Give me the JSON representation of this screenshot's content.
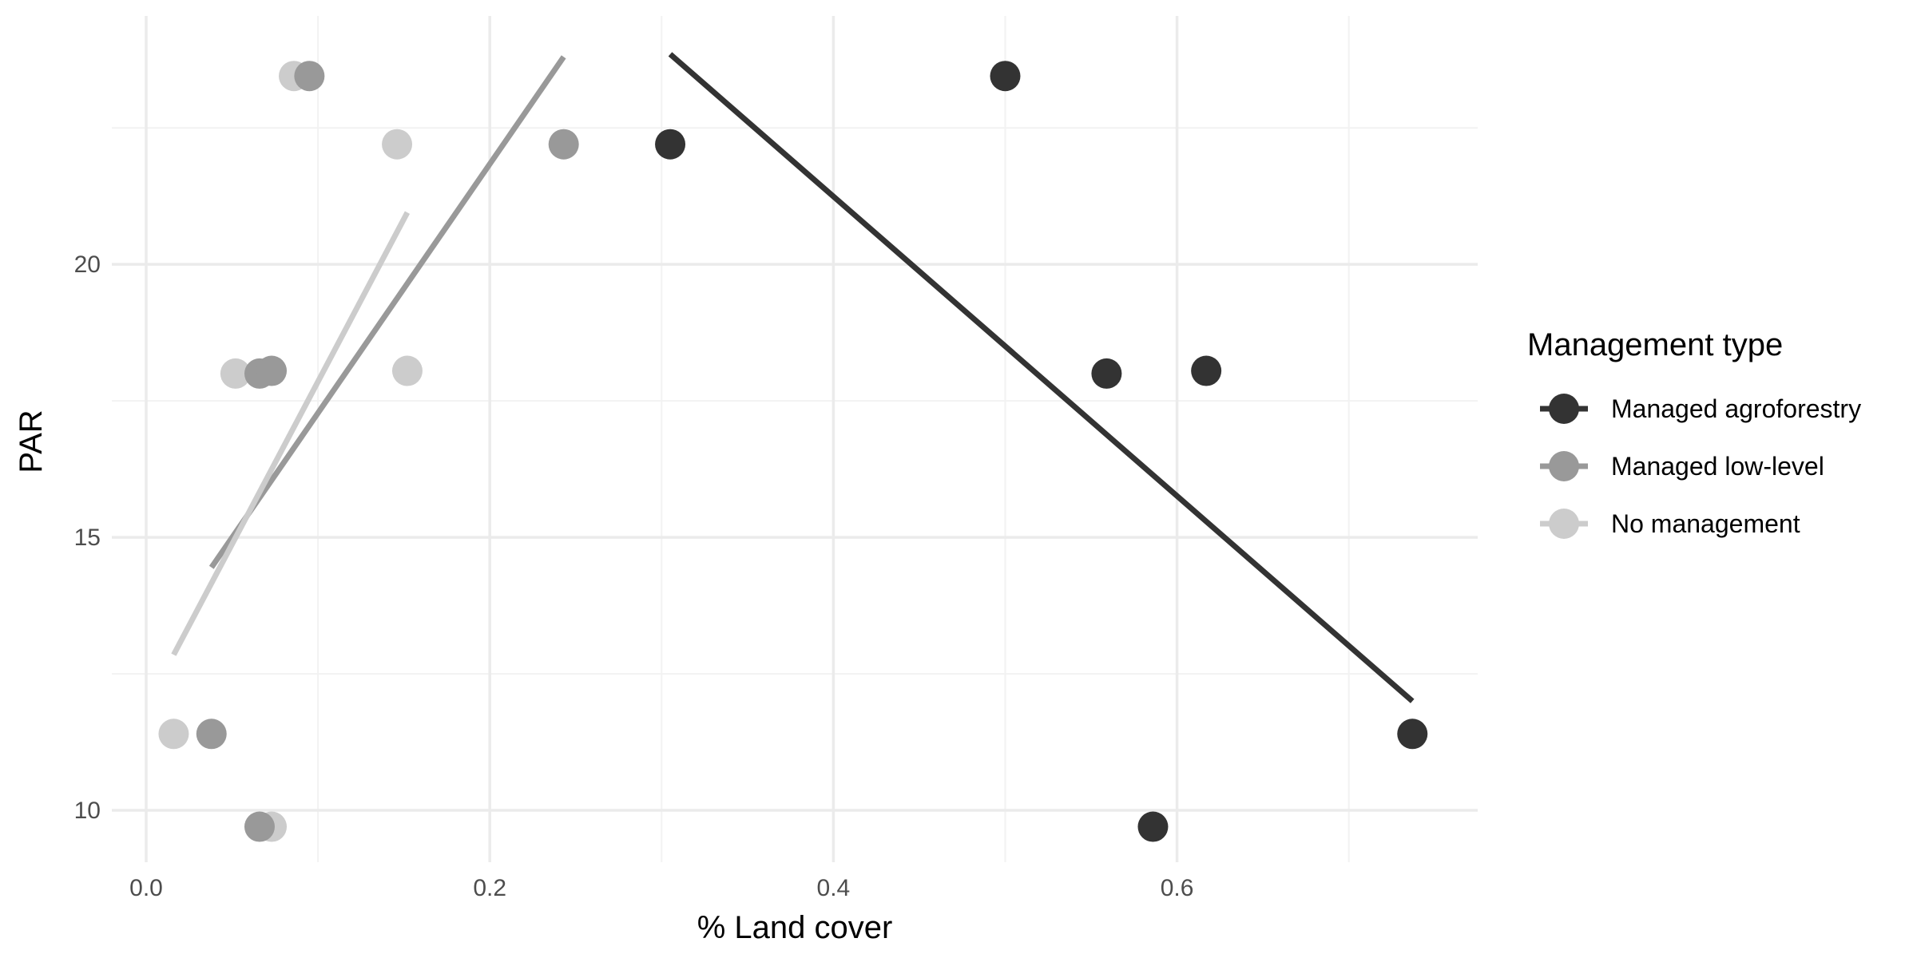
{
  "chart_data": {
    "type": "scatter",
    "xlabel": "% Land cover",
    "ylabel": "PAR",
    "xlim": [
      -0.02,
      0.775
    ],
    "ylim": [
      9.05,
      24.55
    ],
    "x_ticks": [
      0.0,
      0.2,
      0.4,
      0.6
    ],
    "x_tick_labels": [
      "0.0",
      "0.2",
      "0.4",
      "0.6"
    ],
    "y_ticks": [
      10,
      15,
      20
    ],
    "y_tick_labels": [
      "10",
      "15",
      "20"
    ],
    "grid": true,
    "legend": {
      "title": "Management type",
      "placement": "right"
    },
    "series": [
      {
        "name": "Managed agroforestry",
        "color": "#333333",
        "points": [
          {
            "x": 0.305,
            "y": 22.2
          },
          {
            "x": 0.5,
            "y": 23.45
          },
          {
            "x": 0.559,
            "y": 18.0
          },
          {
            "x": 0.617,
            "y": 18.05
          },
          {
            "x": 0.586,
            "y": 9.7
          },
          {
            "x": 0.737,
            "y": 11.4
          }
        ],
        "trend": [
          {
            "x": 0.305,
            "y": 23.85
          },
          {
            "x": 0.737,
            "y": 12.0
          }
        ]
      },
      {
        "name": "Managed low-level",
        "color": "#999999",
        "points": [
          {
            "x": 0.095,
            "y": 23.45
          },
          {
            "x": 0.243,
            "y": 22.2
          },
          {
            "x": 0.066,
            "y": 18.0
          },
          {
            "x": 0.073,
            "y": 18.05
          },
          {
            "x": 0.038,
            "y": 11.4
          },
          {
            "x": 0.066,
            "y": 9.7
          }
        ],
        "trend": [
          {
            "x": 0.038,
            "y": 14.45
          },
          {
            "x": 0.243,
            "y": 23.8
          }
        ]
      },
      {
        "name": "No management",
        "color": "#cccccc",
        "points": [
          {
            "x": 0.086,
            "y": 23.45
          },
          {
            "x": 0.146,
            "y": 22.2
          },
          {
            "x": 0.052,
            "y": 18.0
          },
          {
            "x": 0.152,
            "y": 18.05
          },
          {
            "x": 0.016,
            "y": 11.4
          },
          {
            "x": 0.073,
            "y": 9.7
          }
        ],
        "trend": [
          {
            "x": 0.016,
            "y": 12.85
          },
          {
            "x": 0.152,
            "y": 20.95
          }
        ]
      }
    ]
  }
}
